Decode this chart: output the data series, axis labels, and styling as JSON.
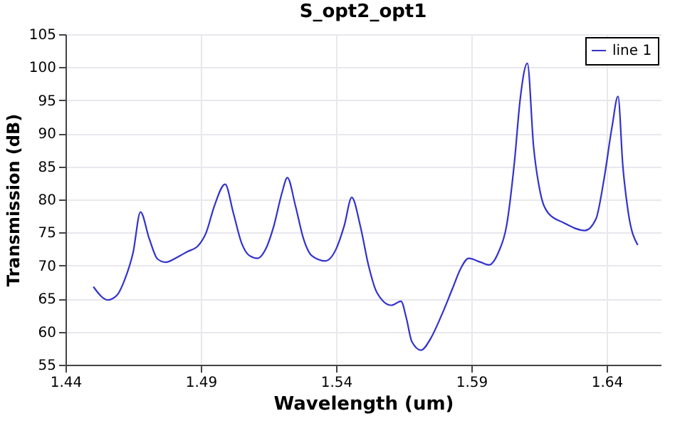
{
  "chart_data": {
    "type": "line",
    "title": "S_opt2_opt1",
    "xlabel": "Wavelength (um)",
    "ylabel": "Transmission (dB)",
    "xlim": [
      1.44,
      1.66
    ],
    "xticks": [
      1.44,
      1.49,
      1.54,
      1.59,
      1.64
    ],
    "ylim": [
      55,
      105
    ],
    "yticks": [
      55,
      60,
      65,
      70,
      75,
      80,
      85,
      90,
      95,
      100,
      105
    ],
    "grid": true,
    "legend": "top right",
    "marker": "none",
    "line_style": "solid",
    "series": [
      {
        "name": "line 1",
        "color": "#3333cc",
        "x": [
          1.4503,
          1.4557,
          1.459,
          1.462,
          1.465,
          1.4677,
          1.471,
          1.474,
          1.477,
          1.481,
          1.485,
          1.489,
          1.492,
          1.495,
          1.499,
          1.502,
          1.505,
          1.508,
          1.511,
          1.514,
          1.517,
          1.52,
          1.522,
          1.525,
          1.528,
          1.531,
          1.536,
          1.54,
          1.543,
          1.5458,
          1.549,
          1.552,
          1.555,
          1.5604,
          1.564,
          1.566,
          1.568,
          1.5714,
          1.575,
          1.579,
          1.583,
          1.586,
          1.589,
          1.5935,
          1.5965,
          1.6,
          1.603,
          1.606,
          1.608,
          1.6107,
          1.613,
          1.6155,
          1.6185,
          1.624,
          1.632,
          1.636,
          1.639,
          1.642,
          1.6442,
          1.646,
          1.648,
          1.6515
        ],
        "values": [
          66.8,
          64.8,
          65.5,
          68,
          72,
          78.1,
          74,
          71,
          70.5,
          71.2,
          72.1,
          73,
          75,
          79,
          82.3,
          78,
          73.5,
          71.5,
          71.1,
          72.5,
          76,
          81,
          83.3,
          79,
          74,
          71.5,
          70.7,
          72.5,
          76,
          80.3,
          75.9,
          70,
          66,
          64.0,
          64.6,
          62,
          58.5,
          57.2,
          59,
          62.5,
          66.5,
          69.5,
          71.1,
          70.5,
          70.1,
          72,
          76,
          86,
          95,
          100.6,
          88,
          81,
          77.9,
          76.5,
          75.3,
          77,
          83,
          91,
          95.6,
          85,
          78,
          73.1
        ]
      }
    ]
  }
}
